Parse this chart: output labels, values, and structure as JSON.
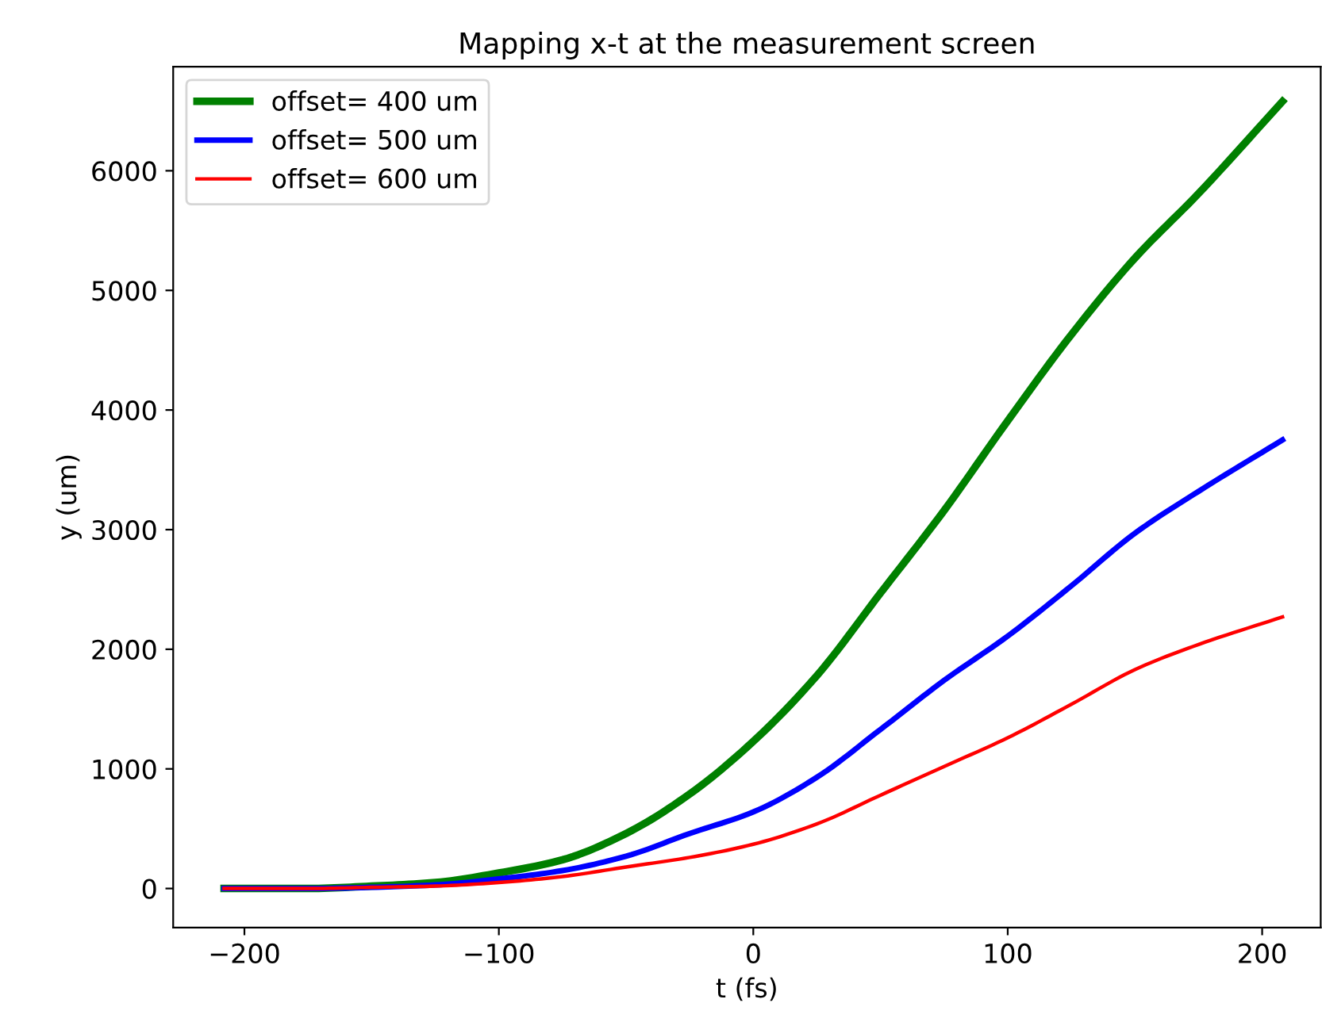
{
  "chart_data": {
    "type": "line",
    "title": "Mapping x-t at the measurement screen",
    "xlabel": "t (fs)",
    "ylabel": "y (um)",
    "x": [
      -208,
      -175,
      -150,
      -125,
      -100,
      -75,
      -50,
      -25,
      0,
      25,
      50,
      75,
      100,
      125,
      150,
      175,
      208
    ],
    "series": [
      {
        "name": "offset= 400 um",
        "color": "#008000",
        "values": [
          0,
          0,
          20,
          50,
          130,
          240,
          460,
          790,
          1230,
          1780,
          2470,
          3160,
          3910,
          4630,
          5270,
          5810,
          6580
        ]
      },
      {
        "name": "offset= 500 um",
        "color": "#0000ff",
        "values": [
          0,
          0,
          10,
          30,
          80,
          150,
          270,
          460,
          640,
          930,
          1330,
          1740,
          2110,
          2530,
          2970,
          3320,
          3750
        ]
      },
      {
        "name": "offset= 600 um",
        "color": "#ff0000",
        "values": [
          0,
          0,
          10,
          20,
          50,
          100,
          180,
          260,
          370,
          540,
          780,
          1020,
          1260,
          1540,
          1830,
          2040,
          2270
        ]
      }
    ],
    "xlim": [
      -228,
      223
    ],
    "ylim": [
      -326,
      6870
    ],
    "xticks": [
      {
        "value": -200,
        "label": "−200"
      },
      {
        "value": -100,
        "label": "−100"
      },
      0,
      100,
      200
    ],
    "yticks": [
      0,
      1000,
      2000,
      3000,
      4000,
      5000,
      6000
    ],
    "grid": false,
    "legend": "top left",
    "line_style": "solid",
    "marker": "none"
  }
}
